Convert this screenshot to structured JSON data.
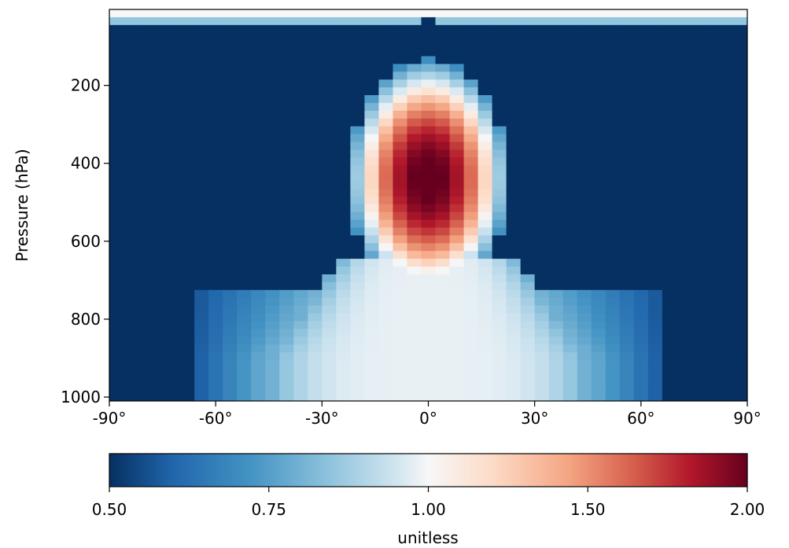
{
  "chart_data": {
    "type": "heatmap",
    "title": "",
    "xlabel": "",
    "ylabel": "Pressure (hPa)",
    "x_ticks": [
      "-90°",
      "-60°",
      "-30°",
      "0°",
      "30°",
      "60°",
      "90°"
    ],
    "x_tick_values": [
      -90,
      -60,
      -30,
      0,
      30,
      60,
      90
    ],
    "xlim": [
      -90,
      90
    ],
    "y_ticks": [
      "200",
      "400",
      "600",
      "800",
      "1000"
    ],
    "y_tick_values": [
      200,
      400,
      600,
      800,
      1000
    ],
    "ylim": [
      1010,
      5
    ],
    "colormap": "RdBu_r",
    "colorbar": {
      "label": "unitless",
      "ticks": [
        "0.50",
        "0.75",
        "1.00",
        "1.50",
        "2.00"
      ],
      "tick_values": [
        0.5,
        0.75,
        1.0,
        1.5,
        2.0
      ],
      "range": [
        0.5,
        2.0
      ],
      "orientation": "horizontal"
    },
    "grid": false,
    "lat_centers": [
      -88,
      -84,
      -80,
      -76,
      -72,
      -68,
      -64,
      -60,
      -56,
      -52,
      -48,
      -44,
      -40,
      -36,
      -32,
      -28,
      -24,
      -20,
      -16,
      -12,
      -8,
      -4,
      0,
      4,
      8,
      12,
      16,
      20,
      24,
      28,
      32,
      36,
      40,
      44,
      48,
      52,
      56,
      60,
      64,
      68,
      72,
      76,
      80,
      84,
      88
    ],
    "pressure_levels": [
      15,
      35,
      300,
      330,
      400,
      450,
      550,
      600,
      625,
      650,
      700,
      750,
      800,
      850,
      900,
      950,
      1000
    ],
    "field_description": "ratio field: about 1 near the top of the domain, a maximum of about 2.0 between 300 and 600 hPa centered near the equator, values near 1.0 between 700 and 1000 hPa for roughly 45°S to 45°N, and about 0.5 elsewhere"
  },
  "colors": {
    "neg_end": "#053061",
    "mid": "#f7f7f7",
    "pos_end": "#67001f"
  }
}
